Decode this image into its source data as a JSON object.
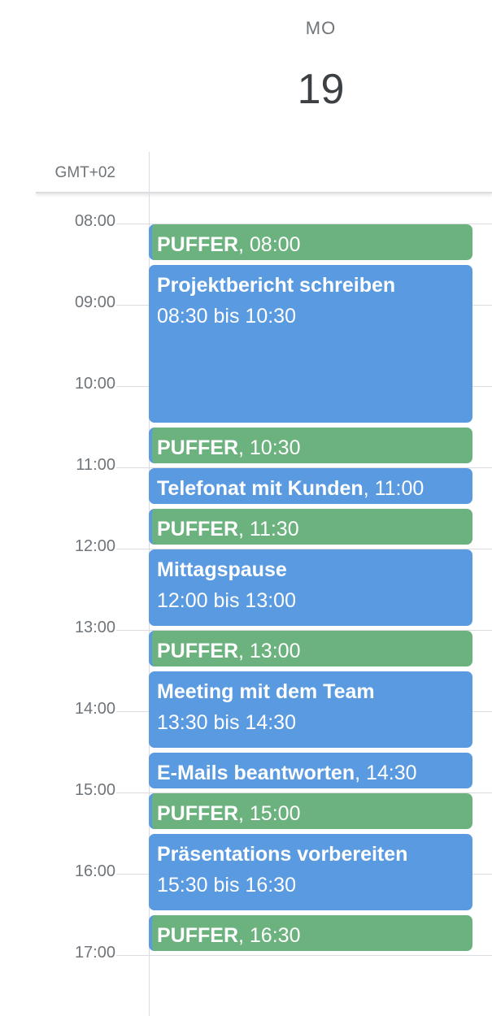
{
  "header": {
    "day_of_week": "MO",
    "day_number": "19",
    "timezone": "GMT+02"
  },
  "hours": [
    "08:00",
    "09:00",
    "10:00",
    "11:00",
    "12:00",
    "13:00",
    "14:00",
    "15:00",
    "16:00",
    "17:00"
  ],
  "colors": {
    "blue": "#5a9ae0",
    "green": "#6bb27f"
  },
  "events": [
    {
      "title": "PUFFER",
      "time": "08:00",
      "start": "08:00",
      "end": "08:30",
      "color": "green",
      "layout": "inline"
    },
    {
      "title": "Projektbericht schreiben",
      "time": "08:30 bis 10:30",
      "start": "08:30",
      "end": "10:30",
      "color": "blue",
      "layout": "stacked"
    },
    {
      "title": "PUFFER",
      "time": "10:30",
      "start": "10:30",
      "end": "11:00",
      "color": "green",
      "layout": "inline"
    },
    {
      "title": "Telefonat mit Kunden",
      "time": "11:00",
      "start": "11:00",
      "end": "11:30",
      "color": "blue",
      "layout": "inline"
    },
    {
      "title": "PUFFER",
      "time": "11:30",
      "start": "11:30",
      "end": "12:00",
      "color": "green",
      "layout": "inline"
    },
    {
      "title": "Mittagspause",
      "time": "12:00 bis 13:00",
      "start": "12:00",
      "end": "13:00",
      "color": "blue",
      "layout": "stacked"
    },
    {
      "title": "PUFFER",
      "time": "13:00",
      "start": "13:00",
      "end": "13:30",
      "color": "green",
      "layout": "inline"
    },
    {
      "title": "Meeting mit dem Team",
      "time": "13:30 bis 14:30",
      "start": "13:30",
      "end": "14:30",
      "color": "blue",
      "layout": "stacked"
    },
    {
      "title": "E-Mails beantworten",
      "time": "14:30",
      "start": "14:30",
      "end": "15:00",
      "color": "blue",
      "layout": "inline"
    },
    {
      "title": "PUFFER",
      "time": "15:00",
      "start": "15:00",
      "end": "15:30",
      "color": "green",
      "layout": "inline"
    },
    {
      "title": "Präsentations vorbereiten",
      "time": "15:30 bis 16:30",
      "start": "15:30",
      "end": "16:30",
      "color": "blue",
      "layout": "stacked"
    },
    {
      "title": "PUFFER",
      "time": "16:30",
      "start": "16:30",
      "end": "17:00",
      "color": "green",
      "layout": "inline"
    }
  ]
}
